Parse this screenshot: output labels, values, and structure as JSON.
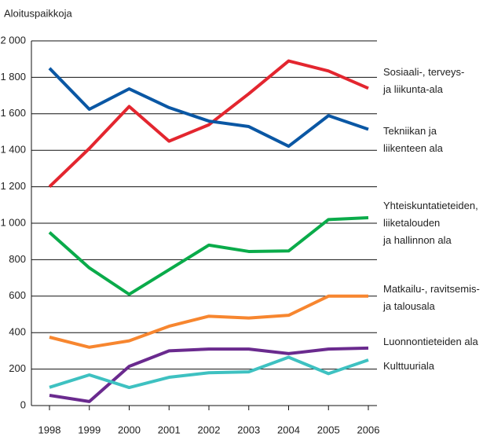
{
  "chart_data": {
    "type": "line",
    "y_label": "Aloituspaikkoja",
    "x": [
      "1998",
      "1999",
      "2000",
      "2001",
      "2002",
      "2003",
      "2004",
      "2005",
      "2006"
    ],
    "ylim": [
      0,
      2000
    ],
    "yticks": [
      0,
      200,
      400,
      600,
      800,
      {
        "value": 1000,
        "label": "1 000"
      },
      {
        "value": 1200,
        "label": "1 200"
      },
      {
        "value": 1400,
        "label": "1 400"
      },
      {
        "value": 1600,
        "label": "1 600"
      },
      {
        "value": 1800,
        "label": "1 800"
      },
      {
        "value": 2000,
        "label": "2 000"
      }
    ],
    "grid": true,
    "series": [
      {
        "name": "Sosiaali-, terveys-\nja liikunta-ala",
        "color": "#e3262f",
        "values": [
          1200,
          1410,
          1640,
          1450,
          1540,
          1710,
          1890,
          1835,
          1740
        ]
      },
      {
        "name": "Tekniikan ja\nliikenteen ala",
        "color": "#0a57a4",
        "values": [
          1850,
          1625,
          1737,
          1634,
          1560,
          1530,
          1422,
          1590,
          1515
        ]
      },
      {
        "name": "Yhteiskuntatieteiden,\nliiketalouden\nja hallinnon ala",
        "color": "#0aab4a",
        "values": [
          950,
          755,
          610,
          745,
          880,
          845,
          848,
          1020,
          1030
        ]
      },
      {
        "name": "Matkailu-, ravitsemis-\nja talousala",
        "color": "#f7862f",
        "values": [
          375,
          320,
          355,
          435,
          490,
          480,
          495,
          600,
          600
        ]
      },
      {
        "name": "Luonnontieteiden ala",
        "color": "#6a2a8e",
        "values": [
          56,
          22,
          215,
          300,
          310,
          310,
          285,
          310,
          315
        ]
      },
      {
        "name": "Kulttuuriala",
        "color": "#3ec1c1",
        "values": [
          100,
          168,
          99,
          155,
          180,
          185,
          265,
          175,
          250
        ]
      }
    ]
  }
}
